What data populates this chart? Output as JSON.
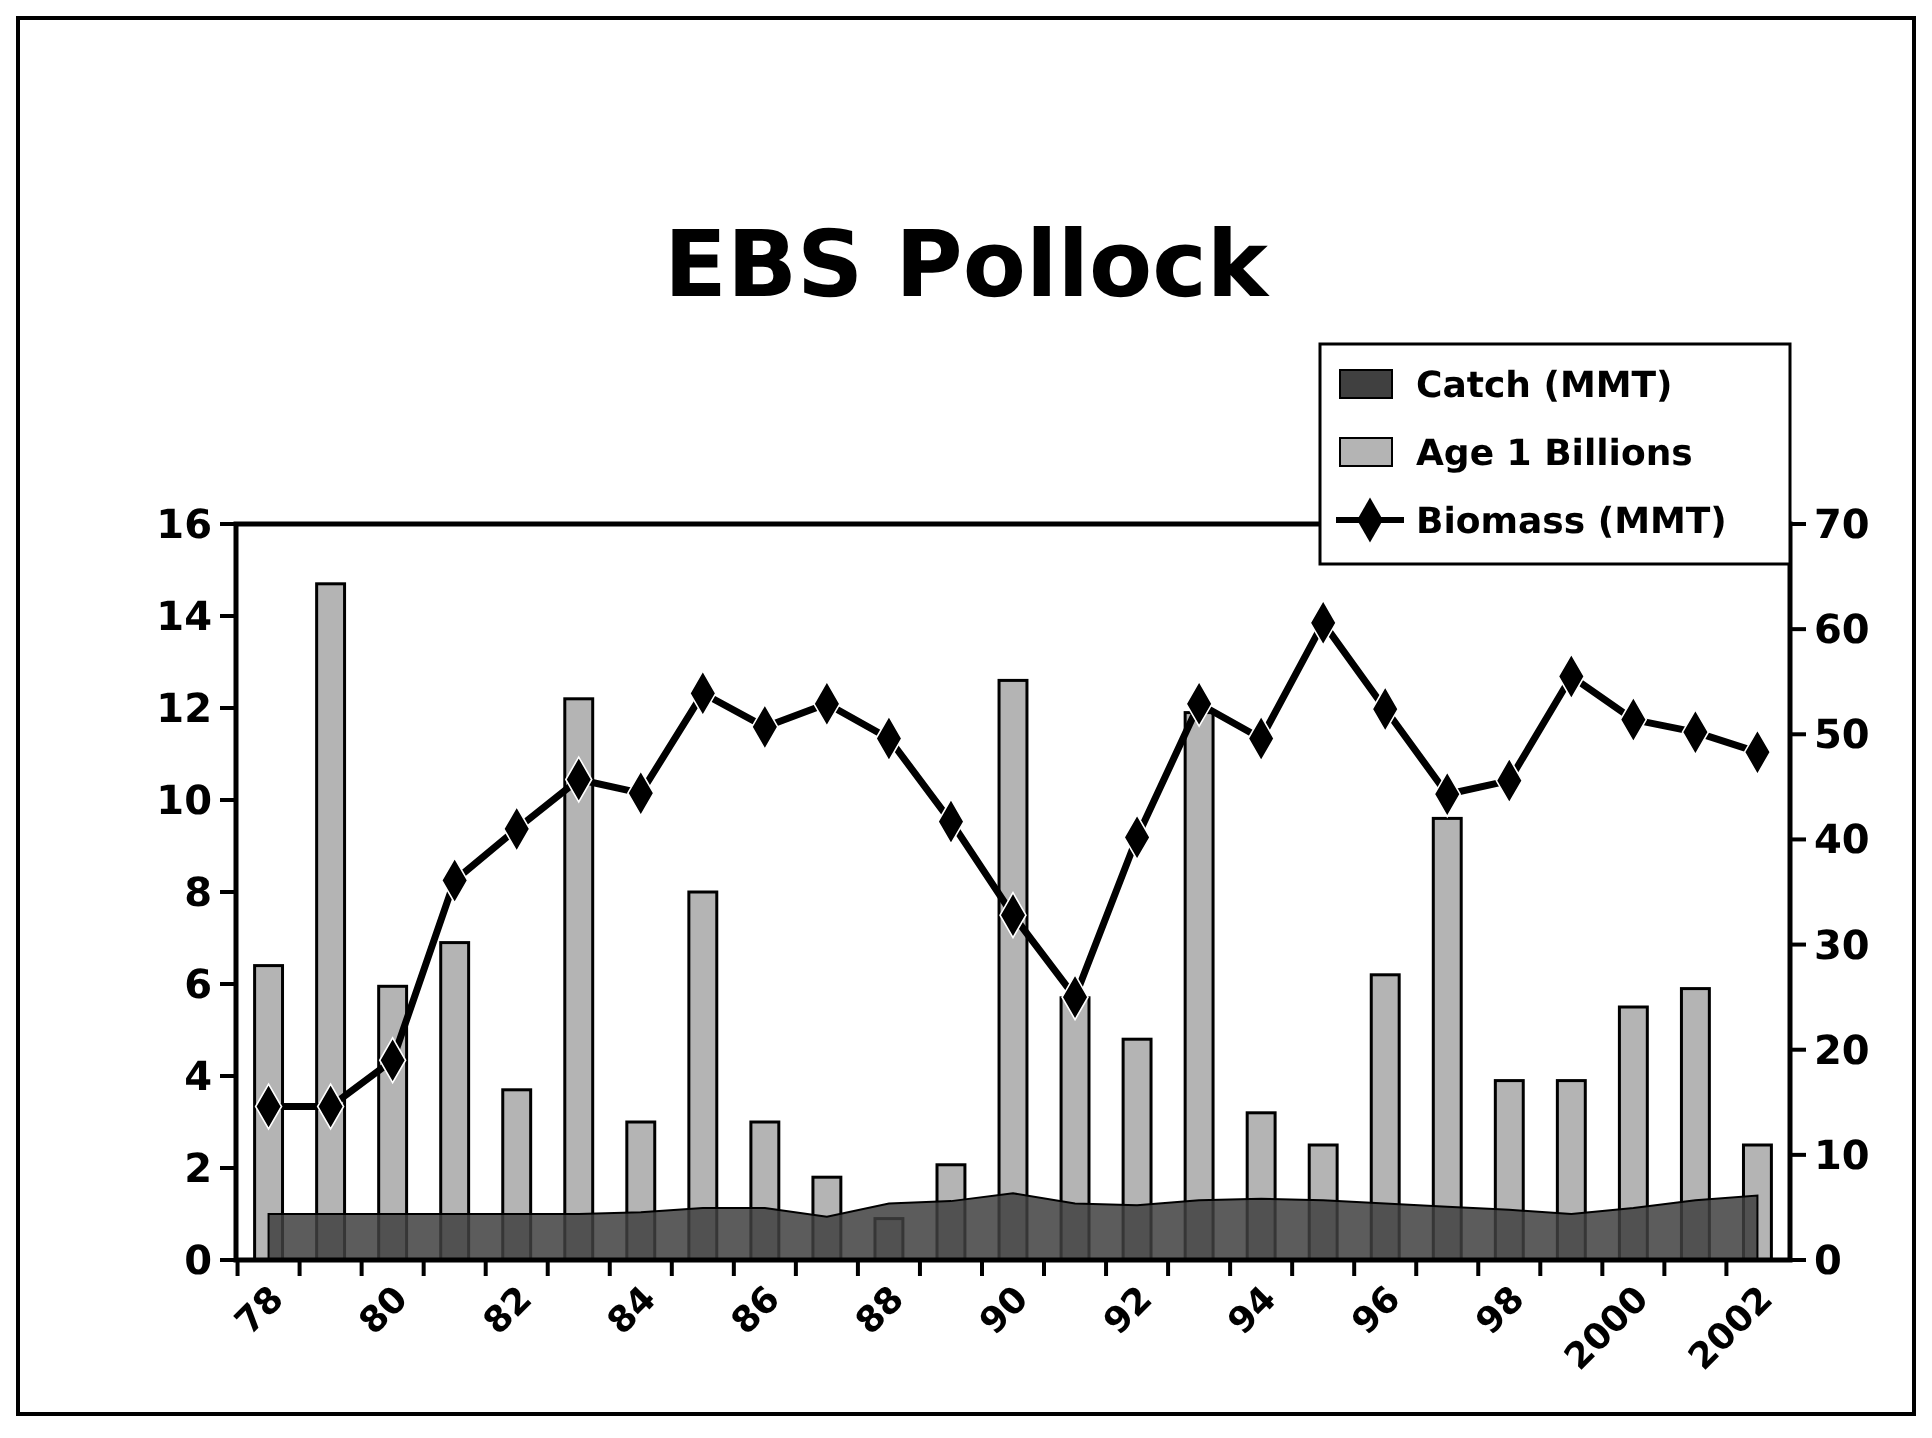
{
  "chart_data": {
    "type": "bar",
    "title": "EBS Pollock",
    "categories": [
      "78",
      null,
      "80",
      null,
      "82",
      null,
      "84",
      null,
      "86",
      null,
      "88",
      null,
      "90",
      null,
      "92",
      null,
      "94",
      null,
      "96",
      null,
      "98",
      null,
      "2000",
      null,
      "2002"
    ],
    "series": [
      {
        "name": "Catch (MMT)",
        "type": "area",
        "color": "#404040",
        "values": [
          1.0,
          1.0,
          1.0,
          1.0,
          1.0,
          1.0,
          1.04,
          1.13,
          1.13,
          0.94,
          1.23,
          1.28,
          1.45,
          1.23,
          1.19,
          1.3,
          1.33,
          1.3,
          1.23,
          1.16,
          1.09,
          1.0,
          1.13,
          1.3,
          1.4
        ]
      },
      {
        "name": "Age 1 Billions",
        "color": "#b4b4b4",
        "values": [
          6.4,
          14.7,
          5.95,
          6.9,
          3.7,
          12.2,
          3.0,
          8.0,
          3.0,
          1.8,
          0.9,
          2.07,
          12.6,
          5.7,
          4.8,
          11.9,
          3.2,
          2.5,
          6.2,
          9.6,
          3.9,
          3.9,
          5.5,
          5.9,
          2.5
        ]
      },
      {
        "name": "Biomass (MMT)",
        "type": "line",
        "axis": "y2",
        "color": "#000000",
        "marker": "diamond",
        "values": [
          14.6,
          14.6,
          19.0,
          36.1,
          41.0,
          45.7,
          44.4,
          53.9,
          50.7,
          52.9,
          49.6,
          41.7,
          32.8,
          25.0,
          40.2,
          52.9,
          49.6,
          60.6,
          52.4,
          44.3,
          45.6,
          55.5,
          51.4,
          50.2,
          48.3
        ]
      }
    ],
    "ylim": [
      0,
      16
    ],
    "yticks": [
      0,
      2,
      4,
      6,
      8,
      10,
      12,
      14,
      16
    ],
    "y2lim": [
      0,
      70
    ],
    "y2ticks": [
      0,
      10,
      20,
      30,
      40,
      50,
      60,
      70
    ],
    "legend": "top right",
    "grid": false
  }
}
